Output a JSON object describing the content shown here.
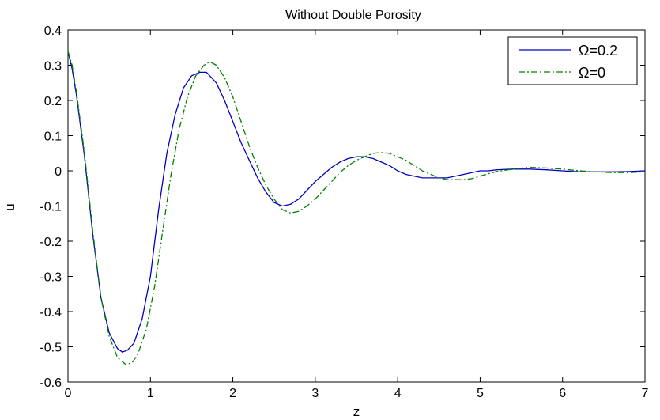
{
  "chart_data": {
    "type": "line",
    "title": "Without Double Porosity",
    "xlabel": "z",
    "ylabel": "u",
    "xlim": [
      0,
      7
    ],
    "ylim": [
      -0.6,
      0.4
    ],
    "xticks": [
      "0",
      "1",
      "2",
      "3",
      "4",
      "5",
      "6",
      "7"
    ],
    "yticks": [
      "0.4",
      "0.3",
      "0.2",
      "0.1",
      "0",
      "-0.1",
      "-0.2",
      "-0.3",
      "-0.4",
      "-0.5",
      "-0.6"
    ],
    "grid": false,
    "legend_position": "top-right",
    "series": [
      {
        "name": "Ω=0.2",
        "color": "#0000c0",
        "style": "solid",
        "points": [
          [
            0,
            0.34
          ],
          [
            0.05,
            0.29
          ],
          [
            0.1,
            0.22
          ],
          [
            0.2,
            0.04
          ],
          [
            0.3,
            -0.18
          ],
          [
            0.4,
            -0.36
          ],
          [
            0.5,
            -0.46
          ],
          [
            0.6,
            -0.505
          ],
          [
            0.66,
            -0.515
          ],
          [
            0.72,
            -0.51
          ],
          [
            0.8,
            -0.49
          ],
          [
            0.9,
            -0.42
          ],
          [
            1.0,
            -0.3
          ],
          [
            1.1,
            -0.11
          ],
          [
            1.2,
            0.05
          ],
          [
            1.3,
            0.16
          ],
          [
            1.4,
            0.235
          ],
          [
            1.5,
            0.27
          ],
          [
            1.6,
            0.28
          ],
          [
            1.68,
            0.28
          ],
          [
            1.8,
            0.25
          ],
          [
            1.9,
            0.2
          ],
          [
            2.0,
            0.14
          ],
          [
            2.1,
            0.08
          ],
          [
            2.2,
            0.03
          ],
          [
            2.3,
            -0.02
          ],
          [
            2.4,
            -0.06
          ],
          [
            2.5,
            -0.09
          ],
          [
            2.6,
            -0.1
          ],
          [
            2.7,
            -0.095
          ],
          [
            2.8,
            -0.08
          ],
          [
            2.9,
            -0.055
          ],
          [
            3.0,
            -0.03
          ],
          [
            3.1,
            -0.01
          ],
          [
            3.2,
            0.01
          ],
          [
            3.3,
            0.025
          ],
          [
            3.4,
            0.035
          ],
          [
            3.5,
            0.04
          ],
          [
            3.6,
            0.04
          ],
          [
            3.7,
            0.035
          ],
          [
            3.8,
            0.025
          ],
          [
            3.9,
            0.015
          ],
          [
            4.0,
            0.0
          ],
          [
            4.1,
            -0.01
          ],
          [
            4.2,
            -0.015
          ],
          [
            4.3,
            -0.02
          ],
          [
            4.4,
            -0.02
          ],
          [
            4.5,
            -0.02
          ],
          [
            4.6,
            -0.02
          ],
          [
            4.7,
            -0.015
          ],
          [
            4.8,
            -0.01
          ],
          [
            4.9,
            -0.005
          ],
          [
            5.0,
            0.0
          ],
          [
            5.1,
            0.0
          ],
          [
            5.2,
            0.003
          ],
          [
            5.4,
            0.005
          ],
          [
            5.6,
            0.005
          ],
          [
            5.8,
            0.003
          ],
          [
            6.0,
            0.0
          ],
          [
            6.2,
            -0.003
          ],
          [
            6.4,
            -0.003
          ],
          [
            6.6,
            -0.003
          ],
          [
            6.8,
            -0.002
          ],
          [
            7.0,
            0.0
          ]
        ]
      },
      {
        "name": "Ω=0",
        "color": "#008000",
        "style": "dashdot",
        "points": [
          [
            0,
            0.34
          ],
          [
            0.05,
            0.3
          ],
          [
            0.1,
            0.23
          ],
          [
            0.2,
            0.05
          ],
          [
            0.3,
            -0.17
          ],
          [
            0.4,
            -0.36
          ],
          [
            0.5,
            -0.47
          ],
          [
            0.6,
            -0.53
          ],
          [
            0.7,
            -0.55
          ],
          [
            0.78,
            -0.545
          ],
          [
            0.85,
            -0.52
          ],
          [
            0.95,
            -0.45
          ],
          [
            1.05,
            -0.33
          ],
          [
            1.15,
            -0.17
          ],
          [
            1.25,
            -0.01
          ],
          [
            1.35,
            0.12
          ],
          [
            1.45,
            0.21
          ],
          [
            1.55,
            0.27
          ],
          [
            1.65,
            0.3
          ],
          [
            1.72,
            0.31
          ],
          [
            1.8,
            0.3
          ],
          [
            1.9,
            0.265
          ],
          [
            2.0,
            0.21
          ],
          [
            2.1,
            0.14
          ],
          [
            2.2,
            0.07
          ],
          [
            2.3,
            0.01
          ],
          [
            2.4,
            -0.04
          ],
          [
            2.5,
            -0.08
          ],
          [
            2.6,
            -0.11
          ],
          [
            2.7,
            -0.12
          ],
          [
            2.8,
            -0.115
          ],
          [
            2.9,
            -0.1
          ],
          [
            3.0,
            -0.08
          ],
          [
            3.1,
            -0.055
          ],
          [
            3.2,
            -0.03
          ],
          [
            3.3,
            -0.005
          ],
          [
            3.4,
            0.015
          ],
          [
            3.5,
            0.03
          ],
          [
            3.6,
            0.04
          ],
          [
            3.7,
            0.05
          ],
          [
            3.8,
            0.052
          ],
          [
            3.9,
            0.05
          ],
          [
            4.0,
            0.04
          ],
          [
            4.1,
            0.03
          ],
          [
            4.2,
            0.015
          ],
          [
            4.3,
            0.0
          ],
          [
            4.4,
            -0.01
          ],
          [
            4.5,
            -0.02
          ],
          [
            4.6,
            -0.025
          ],
          [
            4.7,
            -0.025
          ],
          [
            4.8,
            -0.025
          ],
          [
            4.9,
            -0.022
          ],
          [
            5.0,
            -0.015
          ],
          [
            5.1,
            -0.008
          ],
          [
            5.2,
            -0.002
          ],
          [
            5.4,
            0.005
          ],
          [
            5.6,
            0.01
          ],
          [
            5.8,
            0.008
          ],
          [
            6.0,
            0.005
          ],
          [
            6.2,
            0.0
          ],
          [
            6.4,
            -0.003
          ],
          [
            6.6,
            -0.005
          ],
          [
            6.8,
            -0.005
          ],
          [
            7.0,
            -0.003
          ]
        ]
      }
    ]
  }
}
